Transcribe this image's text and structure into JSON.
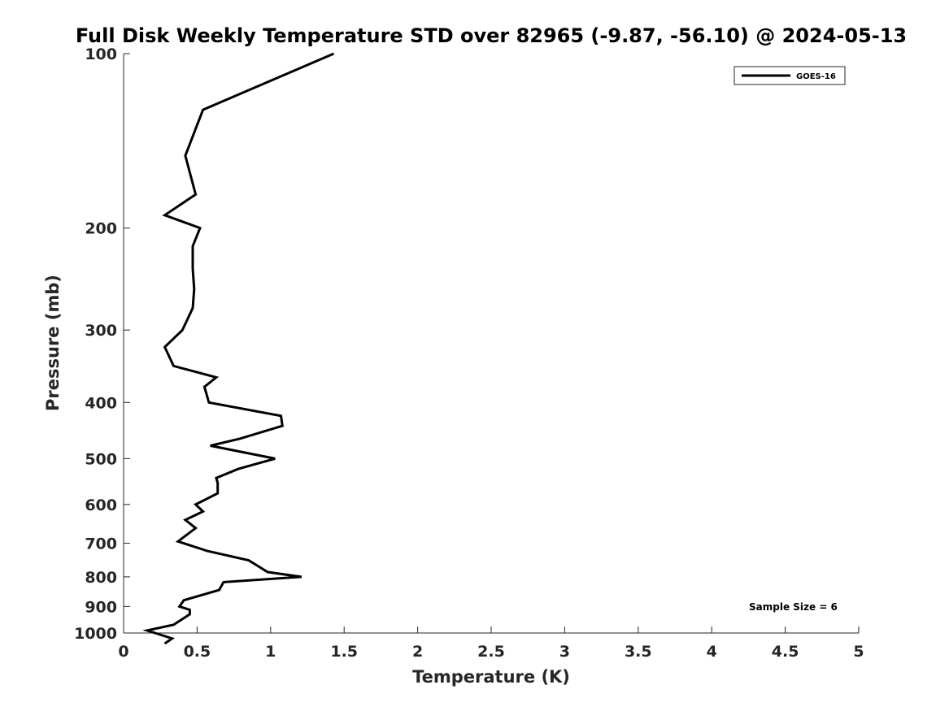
{
  "chart_data": {
    "type": "line",
    "title": "Full Disk Weekly Temperature STD over 82965 (-9.87, -56.10) @ 2024-05-13",
    "xlabel": "Temperature (K)",
    "ylabel": "Pressure (mb)",
    "xlim": [
      0,
      5
    ],
    "ylim": [
      100,
      1000
    ],
    "y_scale": "log",
    "y_reversed": true,
    "x_ticks": [
      "0",
      "0.5",
      "1",
      "1.5",
      "2",
      "2.5",
      "3",
      "3.5",
      "4",
      "4.5",
      "5"
    ],
    "y_ticks": [
      "100",
      "200",
      "300",
      "400",
      "500",
      "600",
      "700",
      "800",
      "900",
      "1000"
    ],
    "legend_position": "top-right",
    "grid": false,
    "series": [
      {
        "name": "GOES-16",
        "color": "#000000",
        "points": [
          [
            1.43,
            100
          ],
          [
            0.54,
            125
          ],
          [
            0.42,
            150
          ],
          [
            0.49,
            175
          ],
          [
            0.28,
            190
          ],
          [
            0.52,
            200
          ],
          [
            0.47,
            215
          ],
          [
            0.47,
            235
          ],
          [
            0.48,
            255
          ],
          [
            0.47,
            275
          ],
          [
            0.4,
            300
          ],
          [
            0.28,
            321
          ],
          [
            0.34,
            346
          ],
          [
            0.63,
            362
          ],
          [
            0.55,
            376
          ],
          [
            0.58,
            400
          ],
          [
            1.07,
            422
          ],
          [
            1.08,
            439
          ],
          [
            0.79,
            462
          ],
          [
            0.59,
            475
          ],
          [
            1.03,
            500
          ],
          [
            0.78,
            521
          ],
          [
            0.63,
            540
          ],
          [
            0.64,
            551
          ],
          [
            0.64,
            574
          ],
          [
            0.49,
            600
          ],
          [
            0.54,
            617
          ],
          [
            0.42,
            638
          ],
          [
            0.49,
            659
          ],
          [
            0.37,
            695
          ],
          [
            0.57,
            722
          ],
          [
            0.85,
            749
          ],
          [
            0.98,
            785
          ],
          [
            1.21,
            800
          ],
          [
            0.68,
            817
          ],
          [
            0.65,
            843
          ],
          [
            0.41,
            878
          ],
          [
            0.38,
            900
          ],
          [
            0.45,
            912
          ],
          [
            0.45,
            928
          ],
          [
            0.34,
            968
          ],
          [
            0.16,
            990
          ],
          [
            0.33,
            1022
          ],
          [
            0.28,
            1043
          ]
        ]
      }
    ],
    "annotations": [
      "Sample Size = 6"
    ]
  }
}
